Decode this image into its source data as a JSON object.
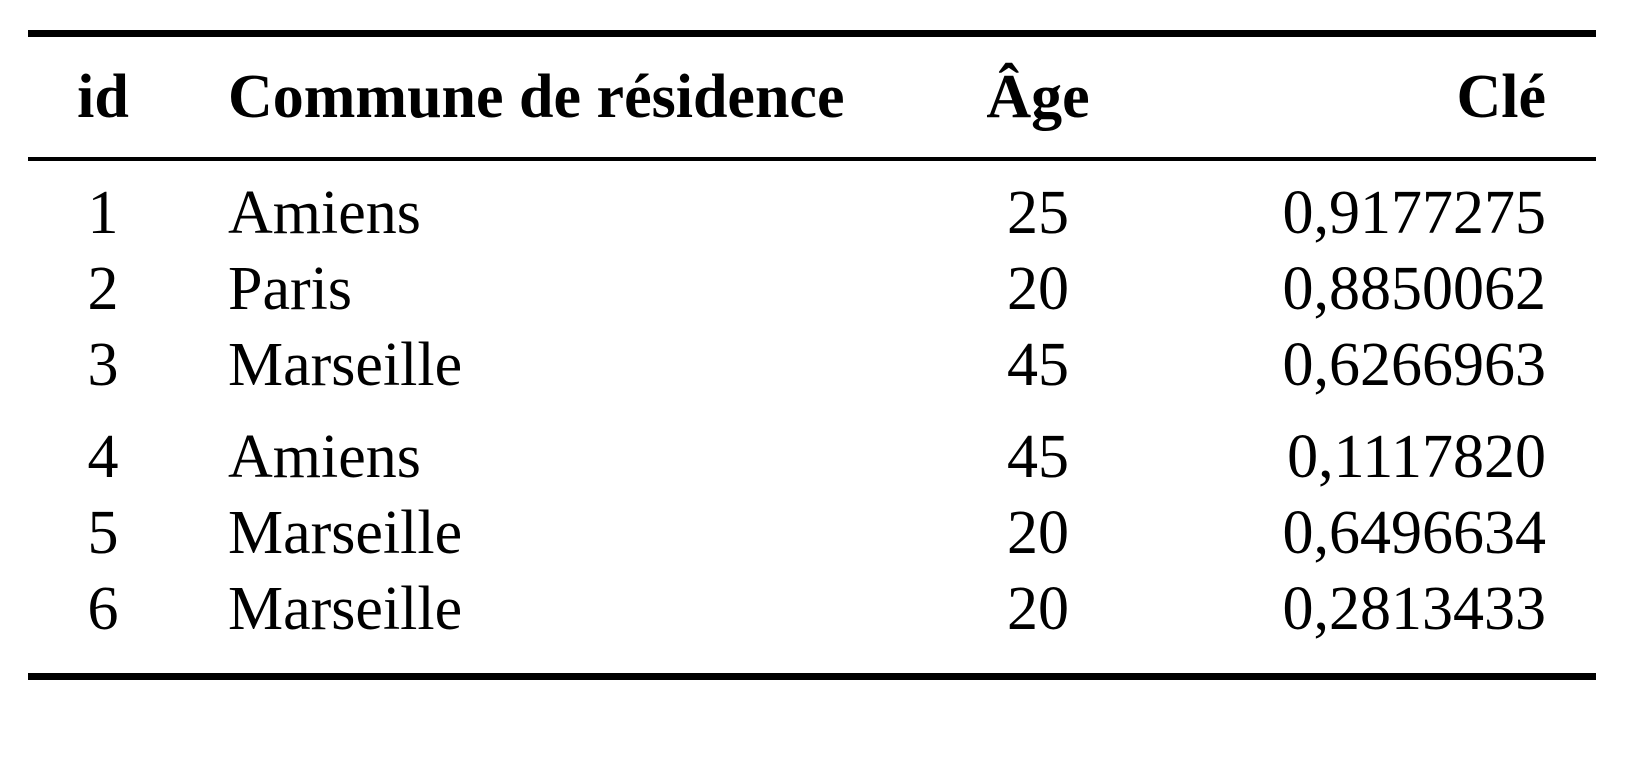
{
  "table": {
    "headers": {
      "id": "id",
      "commune": "Commune de résidence",
      "age": "Âge",
      "cle": "Clé"
    },
    "groups": [
      [
        {
          "id": "1",
          "commune": "Amiens",
          "age": "25",
          "cle": "0,9177275"
        },
        {
          "id": "2",
          "commune": "Paris",
          "age": "20",
          "cle": "0,8850062"
        },
        {
          "id": "3",
          "commune": "Marseille",
          "age": "45",
          "cle": "0,6266963"
        }
      ],
      [
        {
          "id": "4",
          "commune": "Amiens",
          "age": "45",
          "cle": "0,1117820"
        },
        {
          "id": "5",
          "commune": "Marseille",
          "age": "20",
          "cle": "0,6496634"
        },
        {
          "id": "6",
          "commune": "Marseille",
          "age": "20",
          "cle": "0,2813433"
        }
      ]
    ]
  }
}
